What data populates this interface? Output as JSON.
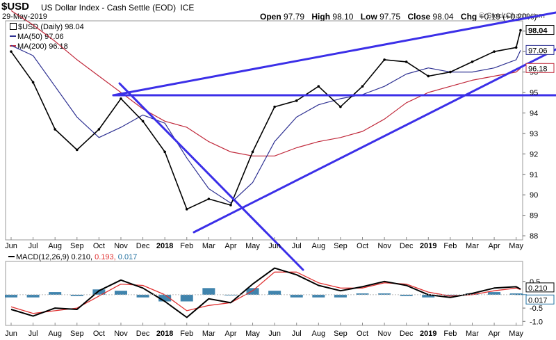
{
  "header": {
    "symbol": "$USD",
    "title": "US Dollar Index - Cash Settle (EOD)",
    "exchange": "ICE",
    "date": "29-May-2019",
    "open_label": "Open",
    "open": "97.79",
    "high_label": "High",
    "high": "98.10",
    "low_label": "Low",
    "low": "97.75",
    "close_label": "Close",
    "close": "98.04",
    "chg_label": "Chg",
    "chg": "+0.19 (+0.20%)",
    "watermark": "© StockCharts.com"
  },
  "legend": {
    "price": "$USD (Daily) 98.04",
    "ma50": "MA(50) 97.06",
    "ma200": "MA(200) 96.18",
    "macd_name": "MACD(12,26,9)",
    "macd_val": "0.210,",
    "signal_val": "0.193,",
    "hist_val": "0.017"
  },
  "colors": {
    "price": "#000000",
    "price_down": "#e0202a",
    "ma50": "#2e3192",
    "ma200": "#c0283a",
    "trendline": "#3b2fe8",
    "hist": "#1f6f9f",
    "macd": "#000000",
    "signal": "#e03030"
  },
  "chart_data": [
    {
      "type": "line",
      "title": "US Dollar Index - Cash Settle (EOD)",
      "x": [
        "Jun",
        "Jul",
        "Aug",
        "Sep",
        "Oct",
        "Nov",
        "Dec",
        "2018",
        "Feb",
        "Mar",
        "Apr",
        "May",
        "Jun",
        "Jul",
        "Aug",
        "Sep",
        "Oct",
        "Nov",
        "Dec",
        "2019",
        "Feb",
        "Mar",
        "Apr",
        "May",
        "May-29"
      ],
      "series": [
        {
          "name": "$USD (Daily)",
          "values": [
            97.0,
            95.5,
            93.2,
            92.2,
            93.2,
            94.7,
            93.6,
            92.1,
            89.3,
            89.8,
            89.5,
            92.1,
            94.3,
            94.6,
            95.3,
            94.3,
            95.3,
            96.6,
            96.5,
            95.8,
            96.0,
            96.5,
            97.0,
            97.2,
            98.04
          ]
        },
        {
          "name": "MA(50)",
          "values": [
            97.3,
            96.8,
            95.3,
            93.8,
            92.8,
            93.3,
            93.9,
            93.5,
            91.8,
            90.3,
            89.6,
            90.6,
            92.6,
            93.8,
            94.4,
            94.7,
            94.9,
            95.3,
            95.9,
            96.2,
            96.0,
            96.0,
            96.2,
            96.6,
            97.06
          ]
        },
        {
          "name": "MA(200)",
          "values": [
            99.0,
            98.3,
            97.5,
            96.6,
            95.8,
            95.0,
            94.2,
            93.6,
            93.3,
            92.6,
            92.1,
            91.9,
            91.9,
            92.3,
            92.6,
            92.8,
            93.1,
            93.7,
            94.5,
            95.0,
            95.3,
            95.6,
            95.8,
            96.0,
            96.18
          ]
        }
      ],
      "xlabel": "",
      "ylabel": "",
      "y_ticks": [
        88,
        89,
        90,
        91,
        92,
        93,
        94,
        95,
        96,
        97,
        98
      ],
      "ylim": [
        87.8,
        98.5
      ],
      "last_value_labels": [
        "98.04",
        "97.06",
        "96.18"
      ],
      "grid": false
    },
    {
      "type": "line",
      "title": "MACD(12,26,9)",
      "x": [
        "Jun",
        "Jul",
        "Aug",
        "Sep",
        "Oct",
        "Nov",
        "Dec",
        "2018",
        "Feb",
        "Mar",
        "Apr",
        "May",
        "Jun",
        "Jul",
        "Aug",
        "Sep",
        "Oct",
        "Nov",
        "Dec",
        "2019",
        "Feb",
        "Mar",
        "Apr",
        "May",
        "May-29"
      ],
      "series": [
        {
          "name": "MACD",
          "values": [
            -0.55,
            -0.8,
            -0.5,
            -0.55,
            0.15,
            0.55,
            0.25,
            -0.25,
            -0.85,
            -0.15,
            -0.3,
            0.4,
            1.0,
            0.75,
            0.35,
            0.15,
            0.3,
            0.5,
            0.35,
            0.0,
            -0.1,
            0.05,
            0.25,
            0.3,
            0.21
          ]
        },
        {
          "name": "Signal",
          "values": [
            -0.45,
            -0.7,
            -0.6,
            -0.5,
            -0.05,
            0.4,
            0.35,
            0.0,
            -0.6,
            -0.4,
            -0.3,
            0.15,
            0.85,
            0.85,
            0.45,
            0.25,
            0.25,
            0.45,
            0.4,
            0.1,
            -0.05,
            0.0,
            0.15,
            0.25,
            0.193
          ]
        },
        {
          "name": "Histogram",
          "values": [
            -0.1,
            -0.1,
            0.1,
            -0.05,
            0.2,
            0.15,
            -0.1,
            -0.25,
            -0.25,
            0.25,
            0.0,
            0.25,
            0.15,
            -0.1,
            -0.1,
            -0.1,
            0.05,
            0.05,
            -0.05,
            -0.1,
            -0.05,
            0.05,
            0.1,
            0.05,
            0.017
          ]
        }
      ],
      "y_ticks": [
        0.5,
        -0.5,
        -1.0
      ],
      "y_tick_labels": [
        "0.5",
        "-0.5",
        "-1.0"
      ],
      "ylim": [
        -1.15,
        1.25
      ],
      "last_value_labels": [
        "0.210",
        "0.017"
      ],
      "grid": false
    }
  ],
  "axis": {
    "months_top": [
      "Jun",
      "Jul",
      "Aug",
      "Sep",
      "Oct",
      "Nov",
      "Dec",
      "2018",
      "Feb",
      "Mar",
      "Apr",
      "May",
      "Jun",
      "Jul",
      "Aug",
      "Sep",
      "Oct",
      "Nov",
      "Dec",
      "2019",
      "Feb",
      "Mar",
      "Apr",
      "May"
    ],
    "months_bottom": [
      "Jun",
      "Jul",
      "Aug",
      "Sep",
      "Oct",
      "Nov",
      "Dec",
      "2018",
      "Feb",
      "Mar",
      "Apr",
      "May",
      "Jun",
      "Jul",
      "Aug",
      "Sep",
      "Oct",
      "Nov",
      "Dec",
      "2019",
      "Feb",
      "Mar",
      "Apr",
      "May"
    ],
    "bold_labels": [
      "2018",
      "2019"
    ]
  }
}
